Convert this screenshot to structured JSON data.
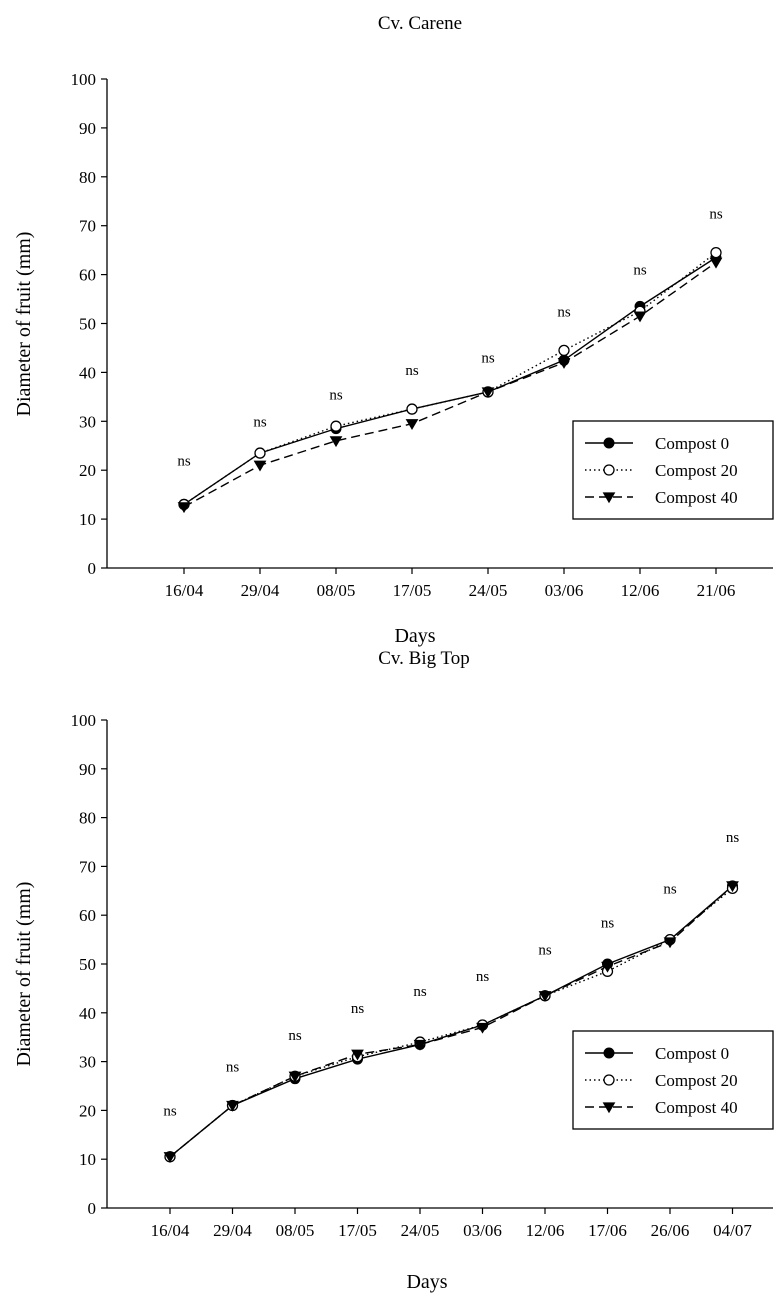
{
  "colors": {
    "background": "#ffffff",
    "ink": "#000000"
  },
  "chart_data": [
    {
      "type": "line",
      "title": "Cv. Carene",
      "xlabel": "Days",
      "ylabel": "Diameter of fruit (mm)",
      "ylim": [
        0,
        100
      ],
      "yticks": [
        0,
        10,
        20,
        30,
        40,
        50,
        60,
        70,
        80,
        90,
        100
      ],
      "categories": [
        "16/04",
        "29/04",
        "08/05",
        "17/05",
        "24/05",
        "03/06",
        "12/06",
        "21/06"
      ],
      "series": [
        {
          "name": "Compost 0",
          "marker": "filled-circle",
          "line_style": "solid",
          "values": [
            13,
            23.5,
            28.5,
            32.5,
            36,
            42.5,
            53.5,
            63.5
          ]
        },
        {
          "name": "Compost 20",
          "marker": "open-circle",
          "line_style": "dotted",
          "values": [
            13,
            23.5,
            29,
            32.5,
            36,
            44.5,
            52.5,
            64.5
          ]
        },
        {
          "name": "Compost 40",
          "marker": "filled-triangle-down",
          "line_style": "dashed",
          "values": [
            12.5,
            21,
            26,
            29.5,
            36,
            42,
            51.5,
            62.5
          ]
        }
      ],
      "annotations": [
        "ns",
        "ns",
        "ns",
        "ns",
        "ns",
        "ns",
        "ns",
        "ns"
      ],
      "annotation_values": [
        22,
        30,
        35.5,
        40.5,
        43,
        52.5,
        61,
        72.5
      ],
      "legend_position": "lower-right",
      "grid": false
    },
    {
      "type": "line",
      "title": "Cv. Big Top",
      "xlabel": "Days",
      "ylabel": "Diameter of fruit (mm)",
      "ylim": [
        0,
        100
      ],
      "yticks": [
        0,
        10,
        20,
        30,
        40,
        50,
        60,
        70,
        80,
        90,
        100
      ],
      "categories": [
        "16/04",
        "29/04",
        "08/05",
        "17/05",
        "24/05",
        "03/06",
        "12/06",
        "17/06",
        "26/06",
        "04/07"
      ],
      "series": [
        {
          "name": "Compost 0",
          "marker": "filled-circle",
          "line_style": "solid",
          "values": [
            10.5,
            21,
            26.5,
            30.5,
            33.5,
            37.5,
            43.5,
            50,
            55,
            66
          ]
        },
        {
          "name": "Compost 20",
          "marker": "open-circle",
          "line_style": "dotted",
          "values": [
            10.5,
            21,
            27,
            31,
            34,
            37.5,
            43.5,
            48.5,
            55,
            65.5
          ]
        },
        {
          "name": "Compost 40",
          "marker": "filled-triangle-down",
          "line_style": "dashed",
          "values": [
            10.5,
            21,
            27,
            31.5,
            33.5,
            37,
            43.5,
            49.5,
            54.5,
            66
          ]
        }
      ],
      "annotations": [
        "ns",
        "ns",
        "ns",
        "ns",
        "ns",
        "ns",
        "ns",
        "ns",
        "ns",
        "ns"
      ],
      "annotation_values": [
        20,
        29,
        35.5,
        41,
        44.5,
        47.5,
        53,
        58.5,
        65.5,
        76
      ],
      "legend_position": "right",
      "grid": false
    }
  ]
}
